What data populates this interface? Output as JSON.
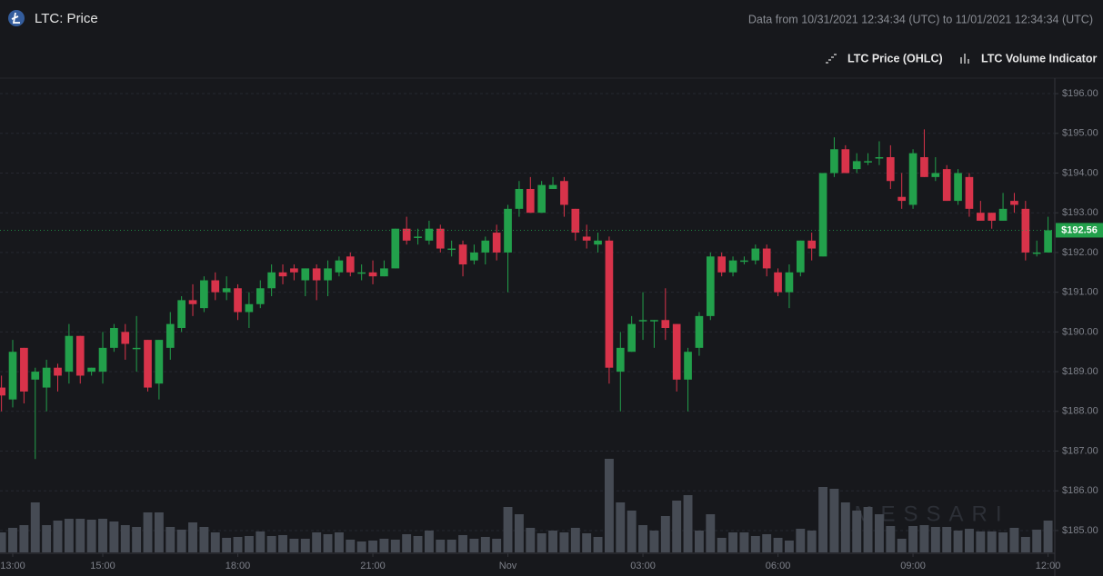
{
  "header": {
    "title": "LTC: Price",
    "range": "Data from 10/31/2021 12:34:34 (UTC) to 11/01/2021 12:34:34 (UTC)"
  },
  "chart_data": {
    "type": "candlestick",
    "series": [
      {
        "name": "LTC Price (OHLC)",
        "up_color": "#22a04b",
        "down_color": "#d8334a",
        "x": [
          0.75,
          1,
          1.25,
          1.5,
          1.75,
          2,
          2.25,
          2.5,
          2.75,
          3,
          3.25,
          3.5,
          3.75,
          4,
          4.25,
          4.5,
          4.75,
          5,
          5.25,
          5.5,
          5.75,
          6,
          6.25,
          6.5,
          6.75,
          7,
          7.25,
          7.5,
          7.75,
          8,
          8.25,
          8.5,
          8.75,
          9,
          9.25,
          9.5,
          9.75,
          10,
          10.25,
          10.5,
          10.75,
          11,
          11.25,
          11.5,
          11.75,
          12,
          12.25,
          12.5,
          12.75,
          13,
          13.25,
          13.5,
          13.75,
          14,
          14.25,
          14.5,
          14.75,
          15,
          15.25,
          15.5,
          15.75,
          16,
          16.25,
          16.5,
          16.75,
          17,
          17.25,
          17.5,
          17.75,
          18,
          18.25,
          18.5,
          18.75,
          19,
          19.25,
          19.5,
          19.75,
          20,
          20.25,
          20.5,
          20.75,
          21,
          21.25,
          21.5,
          21.75,
          22,
          22.25,
          22.5,
          22.75,
          23,
          23.25,
          23.5,
          23.75,
          24
        ],
        "open": [
          188.6,
          188.3,
          189.6,
          188.8,
          188.6,
          189.1,
          189.0,
          189.9,
          189.0,
          189.0,
          189.6,
          190.0,
          189.6,
          189.8,
          188.7,
          189.6,
          190.1,
          190.8,
          190.6,
          191.3,
          191.0,
          191.1,
          190.5,
          190.7,
          191.1,
          191.5,
          191.6,
          191.3,
          191.6,
          191.3,
          191.5,
          191.9,
          191.5,
          191.5,
          191.4,
          191.6,
          192.6,
          192.4,
          192.3,
          192.6,
          192.1,
          192.2,
          191.8,
          192.0,
          192.5,
          192.0,
          193.1,
          193.6,
          193.0,
          193.6,
          193.8,
          193.1,
          192.4,
          192.2,
          192.3,
          189.0,
          189.5,
          190.3,
          190.3,
          190.3,
          190.2,
          188.8,
          189.6,
          190.4,
          191.9,
          191.5,
          191.8,
          191.8,
          192.1,
          191.5,
          191.0,
          191.5,
          192.3,
          191.9,
          194.0,
          194.6,
          194.1,
          194.3,
          194.4,
          194.4,
          193.4,
          193.2,
          194.4,
          193.9,
          194.1,
          193.3,
          193.9,
          193.0,
          193.0,
          192.8,
          193.3,
          193.1,
          192.0,
          192.0
        ],
        "high": [
          188.9,
          189.8,
          189.6,
          189.1,
          189.3,
          189.2,
          190.2,
          189.9,
          189.1,
          190.0,
          190.2,
          190.2,
          190.4,
          189.8,
          189.8,
          190.5,
          190.9,
          191.2,
          191.4,
          191.5,
          191.4,
          191.2,
          191.0,
          191.3,
          191.7,
          191.7,
          191.7,
          191.6,
          191.7,
          191.8,
          191.9,
          192.0,
          191.7,
          191.8,
          191.8,
          192.6,
          192.9,
          192.6,
          192.8,
          192.7,
          192.3,
          192.3,
          192.2,
          192.4,
          192.7,
          193.2,
          193.8,
          193.9,
          193.8,
          193.9,
          193.9,
          193.1,
          192.7,
          192.5,
          192.4,
          190.0,
          190.4,
          191.0,
          190.3,
          191.1,
          190.2,
          189.6,
          190.5,
          192.0,
          192.0,
          191.9,
          191.9,
          192.2,
          192.2,
          191.6,
          191.7,
          192.3,
          192.5,
          194.0,
          194.9,
          194.7,
          194.5,
          194.5,
          194.8,
          194.7,
          194.0,
          194.6,
          195.1,
          194.4,
          194.2,
          194.1,
          194.0,
          193.3,
          193.0,
          193.5,
          193.5,
          193.3,
          192.3,
          192.9
        ],
        "low": [
          188.0,
          188.1,
          188.2,
          186.8,
          188.0,
          188.5,
          188.7,
          188.7,
          188.9,
          188.7,
          189.5,
          189.3,
          189.0,
          188.5,
          188.3,
          189.3,
          190.0,
          190.4,
          190.5,
          190.8,
          190.8,
          190.3,
          190.1,
          190.6,
          190.9,
          191.2,
          191.3,
          190.9,
          190.8,
          190.9,
          191.4,
          191.4,
          191.3,
          191.2,
          191.4,
          191.6,
          192.2,
          192.2,
          192.2,
          192.0,
          191.9,
          191.4,
          191.7,
          191.7,
          191.8,
          191.0,
          192.9,
          193.0,
          193.0,
          193.6,
          192.9,
          192.3,
          192.1,
          192.0,
          188.7,
          188.0,
          189.5,
          189.8,
          189.6,
          189.8,
          188.5,
          188.0,
          189.4,
          190.3,
          191.4,
          191.4,
          191.7,
          191.7,
          191.4,
          190.9,
          190.6,
          191.4,
          191.8,
          191.9,
          193.9,
          194.0,
          194.0,
          194.2,
          194.2,
          193.6,
          193.1,
          193.1,
          193.9,
          193.8,
          193.3,
          193.2,
          192.9,
          192.8,
          192.6,
          192.8,
          193.0,
          191.8,
          191.9,
          192.0
        ],
        "close": [
          188.4,
          189.5,
          188.5,
          189.0,
          189.1,
          188.9,
          189.9,
          188.9,
          189.1,
          189.6,
          190.1,
          189.7,
          189.6,
          188.6,
          189.8,
          190.2,
          190.8,
          190.7,
          191.3,
          191.0,
          191.1,
          190.5,
          190.7,
          191.1,
          191.5,
          191.4,
          191.5,
          191.6,
          191.3,
          191.6,
          191.8,
          191.5,
          191.5,
          191.4,
          191.6,
          192.6,
          192.3,
          192.4,
          192.6,
          192.1,
          192.1,
          191.7,
          192.0,
          192.3,
          192.0,
          193.1,
          193.6,
          193.0,
          193.7,
          193.7,
          193.2,
          192.5,
          192.3,
          192.3,
          189.1,
          189.6,
          190.2,
          190.3,
          190.3,
          190.1,
          188.8,
          189.5,
          190.4,
          191.9,
          191.5,
          191.8,
          191.8,
          192.1,
          191.6,
          191.0,
          191.5,
          192.3,
          192.1,
          194.0,
          194.6,
          194.0,
          194.3,
          194.3,
          194.4,
          193.8,
          193.3,
          194.5,
          193.9,
          194.0,
          193.3,
          194.0,
          193.1,
          192.8,
          192.8,
          193.1,
          193.2,
          192.0,
          192.0,
          192.56
        ]
      },
      {
        "name": "LTC Volume Indicator",
        "type": "bar",
        "color": "#464b54",
        "values": [
          22,
          27,
          30,
          55,
          30,
          35,
          37,
          37,
          36,
          37,
          34,
          30,
          28,
          44,
          44,
          28,
          25,
          33,
          28,
          22,
          16,
          17,
          18,
          23,
          18,
          19,
          15,
          15,
          22,
          20,
          22,
          14,
          12,
          13,
          15,
          14,
          20,
          18,
          24,
          14,
          14,
          19,
          15,
          17,
          15,
          50,
          42,
          27,
          21,
          24,
          22,
          27,
          21,
          17,
          103,
          55,
          46,
          30,
          24,
          40,
          57,
          63,
          24,
          42,
          16,
          22,
          22,
          18,
          20,
          16,
          13,
          26,
          24,
          72,
          70,
          55,
          46,
          50,
          42,
          29,
          15,
          29,
          30,
          28,
          28,
          24,
          26,
          23,
          23,
          22,
          27,
          17,
          25,
          35
        ]
      }
    ],
    "xlim": [
      0.717,
      24.15
    ],
    "xticks": [
      {
        "value": 1,
        "label": "13:00"
      },
      {
        "value": 3,
        "label": "15:00"
      },
      {
        "value": 6,
        "label": "18:00"
      },
      {
        "value": 9,
        "label": "21:00"
      },
      {
        "value": 12,
        "label": "Nov"
      },
      {
        "value": 15,
        "label": "03:00"
      },
      {
        "value": 18,
        "label": "06:00"
      },
      {
        "value": 21,
        "label": "09:00"
      },
      {
        "value": 24,
        "label": "12:00"
      }
    ],
    "ylim": [
      184.45,
      196.39
    ],
    "yticks": [
      {
        "value": 185,
        "label": "$185.00"
      },
      {
        "value": 186,
        "label": "$186.00"
      },
      {
        "value": 187,
        "label": "$187.00"
      },
      {
        "value": 188,
        "label": "$188.00"
      },
      {
        "value": 189,
        "label": "$189.00"
      },
      {
        "value": 190,
        "label": "$190.00"
      },
      {
        "value": 191,
        "label": "$191.00"
      },
      {
        "value": 192,
        "label": "$192.00"
      },
      {
        "value": 193,
        "label": "$193.00"
      },
      {
        "value": 194,
        "label": "$194.00"
      },
      {
        "value": 195,
        "label": "$195.00"
      },
      {
        "value": 196,
        "label": "$196.00"
      }
    ],
    "grid": true,
    "price_tag": {
      "value": 192.56,
      "label": "$192.56"
    },
    "watermark": "MESSARI"
  }
}
